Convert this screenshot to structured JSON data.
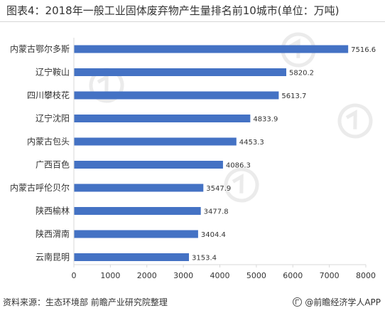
{
  "title": "图表4：2018年一般工业固体废弃物产生量排名前10城市(单位：万吨)",
  "source": "资料来源：生态环境部 前瞻产业研究院整理",
  "brand": "@前瞻经济学人APP",
  "colors": {
    "bar": "#4472c4",
    "text": "#333333",
    "axis": "#d9d9d9"
  },
  "chart_data": {
    "type": "bar",
    "orientation": "horizontal",
    "categories": [
      "内蒙古鄂尔多斯",
      "辽宁鞍山",
      "四川攀枝花",
      "辽宁沈阳",
      "内蒙古包头",
      "广西百色",
      "内蒙古呼伦贝尔",
      "陕西榆林",
      "陕西渭南",
      "云南昆明"
    ],
    "values": [
      7516.6,
      5820.2,
      5613.7,
      4833.9,
      4453.3,
      4086.3,
      3547.9,
      3477.8,
      3404.4,
      3153.4
    ],
    "value_labels": [
      "7516.6",
      "5820.2",
      "5613.7",
      "4833.9",
      "4453.3",
      "4086.3",
      "3547.9",
      "3477.8",
      "3404.4",
      "3153.4"
    ],
    "xlim": [
      0,
      8000
    ],
    "ticks": [
      "0",
      "1000",
      "2000",
      "3000",
      "4000",
      "5000",
      "6000",
      "7000",
      "8000"
    ],
    "grid": false,
    "legend": "none"
  }
}
